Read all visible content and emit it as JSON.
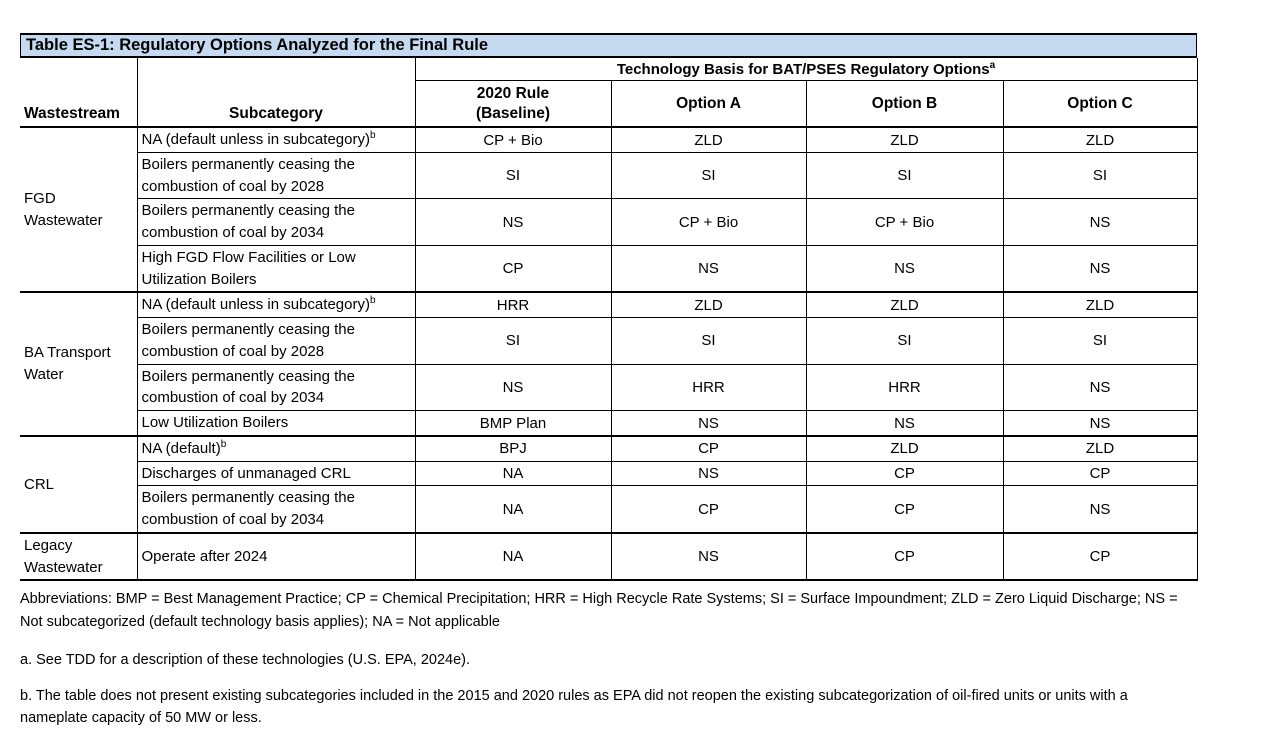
{
  "title": "Table ES-1: Regulatory Options Analyzed for the Final Rule",
  "header": {
    "wastestream": "Wastestream",
    "subcategory": "Subcategory",
    "tech_basis": "Technology Basis for BAT/PSES Regulatory Options",
    "tech_basis_sup": "a",
    "baseline_line1": "2020 Rule",
    "baseline_line2": "(Baseline)",
    "option_a": "Option A",
    "option_b": "Option B",
    "option_c": "Option C"
  },
  "sections": [
    {
      "wastestream": "FGD Wastewater",
      "rows": [
        {
          "subcategory": "NA (default unless in subcategory)",
          "sup": "b",
          "baseline": "CP + Bio",
          "option_a": "ZLD",
          "option_b": "ZLD",
          "option_c": "ZLD"
        },
        {
          "subcategory": "Boilers permanently ceasing the combustion of coal by 2028",
          "baseline": "SI",
          "option_a": "SI",
          "option_b": "SI",
          "option_c": "SI"
        },
        {
          "subcategory": "Boilers permanently ceasing the combustion of coal by 2034",
          "baseline": "NS",
          "option_a": "CP + Bio",
          "option_b": "CP + Bio",
          "option_c": "NS"
        },
        {
          "subcategory": "High FGD Flow Facilities or Low Utilization Boilers",
          "baseline": "CP",
          "option_a": "NS",
          "option_b": "NS",
          "option_c": "NS"
        }
      ]
    },
    {
      "wastestream": "BA Transport Water",
      "rows": [
        {
          "subcategory": "NA (default unless in subcategory)",
          "sup": "b",
          "baseline": "HRR",
          "option_a": "ZLD",
          "option_b": "ZLD",
          "option_c": "ZLD"
        },
        {
          "subcategory": "Boilers permanently ceasing the combustion of coal by 2028",
          "baseline": "SI",
          "option_a": "SI",
          "option_b": "SI",
          "option_c": "SI"
        },
        {
          "subcategory": "Boilers permanently ceasing the combustion of coal by 2034",
          "baseline": "NS",
          "option_a": "HRR",
          "option_b": "HRR",
          "option_c": "NS"
        },
        {
          "subcategory": "Low Utilization Boilers",
          "baseline": "BMP Plan",
          "option_a": "NS",
          "option_b": "NS",
          "option_c": "NS"
        }
      ]
    },
    {
      "wastestream": "CRL",
      "rows": [
        {
          "subcategory": "NA (default)",
          "sup": "b",
          "baseline": "BPJ",
          "option_a": "CP",
          "option_b": "ZLD",
          "option_c": "ZLD"
        },
        {
          "subcategory": "Discharges of unmanaged CRL",
          "baseline": "NA",
          "option_a": "NS",
          "option_b": "CP",
          "option_c": "CP"
        },
        {
          "subcategory": "Boilers permanently ceasing the combustion of coal by 2034",
          "baseline": "NA",
          "option_a": "CP",
          "option_b": "CP",
          "option_c": "NS"
        }
      ]
    },
    {
      "wastestream": "Legacy Wastewater",
      "rows": [
        {
          "subcategory": "Operate after 2024",
          "baseline": "NA",
          "option_a": "NS",
          "option_b": "CP",
          "option_c": "CP"
        }
      ]
    }
  ],
  "notes": {
    "abbreviations": "Abbreviations: BMP = Best Management Practice; CP = Chemical Precipitation; HRR = High Recycle Rate Systems; SI = Surface Impoundment; ZLD = Zero Liquid Discharge; NS = Not subcategorized (default technology basis applies); NA = Not applicable",
    "note_a": "a. See TDD for a description of these technologies (U.S. EPA, 2024e).",
    "note_b": "b. The table does not present existing subcategories included in the 2015 and 2020 rules as EPA did not reopen the existing subcategorization of oil-fired units or units with a nameplate capacity of 50 MW or less."
  },
  "colors": {
    "title_bg": "#c5d9f1",
    "border": "#000000",
    "text": "#000000"
  }
}
